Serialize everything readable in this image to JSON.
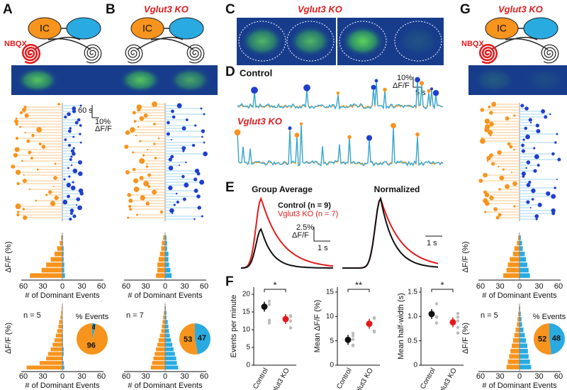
{
  "panels": {
    "A": {
      "letter": "A",
      "node_left": "IC",
      "drug": "NBQX",
      "raster_scale_time": "60 s",
      "raster_scale_amp": [
        "10%",
        "ΔF/F"
      ],
      "hist_ylabel": "ΔF/F (%)",
      "hist_xlabel": "# of Dominant Events",
      "hist_xticks": [
        "60",
        "30",
        "0",
        "30",
        "60"
      ],
      "hist_top": {
        "left": [
          2,
          4,
          8,
          12,
          18,
          25,
          32,
          50
        ],
        "right": [
          1,
          1,
          2,
          2,
          2,
          3,
          3,
          4
        ]
      },
      "hist_bottom": {
        "left": [
          1,
          2,
          3,
          5,
          6,
          8,
          10,
          12,
          15,
          18,
          22,
          25,
          35,
          55
        ],
        "right": [
          0,
          0,
          0,
          0,
          1,
          0,
          1,
          1,
          1,
          2,
          2,
          1,
          2,
          3
        ]
      },
      "n": "n = 5",
      "pie_title": "% Events",
      "pie_values": [
        4,
        96
      ]
    },
    "B": {
      "letter": "B",
      "title": "Vglut3 KO",
      "node_left": "IC",
      "hist_xlabel": "# of Dominant Events",
      "hist_xticks": [
        "60",
        "30",
        "0",
        "30",
        "60"
      ],
      "hist_top": {
        "left": [
          3,
          5,
          6,
          8,
          10,
          12,
          12,
          14
        ],
        "right": [
          2,
          3,
          3,
          5,
          5,
          6,
          8,
          10
        ]
      },
      "hist_bottom": {
        "left": [
          1,
          2,
          3,
          4,
          5,
          6,
          8,
          10,
          12,
          14,
          16,
          18,
          20,
          22
        ],
        "right": [
          1,
          2,
          2,
          4,
          5,
          6,
          7,
          9,
          11,
          13,
          15,
          17,
          18,
          20
        ]
      },
      "n": "n = 7",
      "pie_values": [
        47,
        53
      ]
    },
    "C": {
      "letter": "C",
      "title": "Vglut3 KO"
    },
    "D": {
      "letter": "D",
      "control_label": "Control",
      "ko_label": "Vglut3 KO",
      "scale_amp": [
        "10%",
        "ΔF/F"
      ],
      "scale_time": "5 s"
    },
    "E": {
      "letter": "E",
      "left_title": "Group Average",
      "right_title": "Normalized",
      "legend": [
        "Control (n = 9)",
        "Vglut3 KO (n = 7)"
      ],
      "scale_amp": [
        "2.5%",
        "ΔF/F"
      ],
      "scale_time_left": "1 s",
      "scale_time_right": "1 s"
    },
    "F": {
      "letter": "F",
      "categories": [
        "Control",
        "Vglut3 KO"
      ],
      "plots": [
        {
          "ylabel": "Events per minute",
          "yticks": [
            0,
            5,
            10,
            15,
            20
          ],
          "ylim": [
            0,
            22
          ],
          "means": [
            16.5,
            13
          ],
          "sig": "*"
        },
        {
          "ylabel": "Mean ΔF/F (%)",
          "yticks": [
            0,
            5,
            10,
            15
          ],
          "ylim": [
            0,
            16
          ],
          "means": [
            5.2,
            8.5
          ],
          "sig": "**"
        },
        {
          "ylabel": "Mean half-width (s)",
          "yticks": [
            0,
            0.5,
            {
              "value": 1,
              "label": "1.0"
            },
            1.5
          ],
          "ylim": [
            0,
            1.6
          ],
          "means": [
            1.05,
            0.88
          ],
          "sig": "*"
        }
      ]
    },
    "G": {
      "letter": "G",
      "title": "Vglut3 KO",
      "node_left": "IC",
      "drug": "NBQX",
      "hist_ylabel": "ΔF/F (%)",
      "hist_xlabel": "# of Dominant Events",
      "hist_xticks": [
        "60",
        "30",
        "0",
        "30",
        "60"
      ],
      "hist_top": {
        "left": [
          2,
          4,
          8,
          10,
          15,
          18,
          20,
          25
        ],
        "right": [
          2,
          4,
          5,
          8,
          10,
          12,
          14,
          16
        ]
      },
      "hist_bottom": {
        "left": [
          1,
          2,
          3,
          4,
          6,
          8,
          10,
          12,
          14,
          16,
          18,
          20
        ],
        "right": [
          1,
          2,
          3,
          4,
          6,
          8,
          10,
          12,
          13,
          14,
          16,
          18
        ]
      },
      "n": "n = 5",
      "pie_title": "% Events",
      "pie_values": [
        48,
        52
      ]
    }
  }
}
